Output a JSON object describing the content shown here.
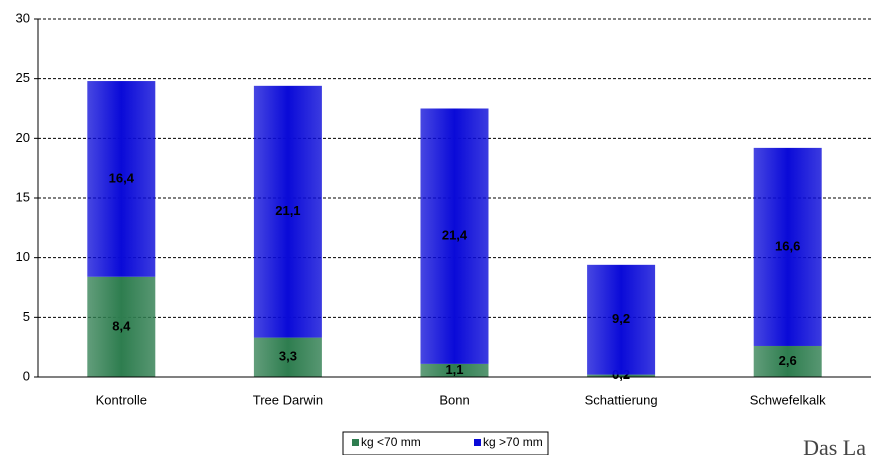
{
  "chart_data": {
    "type": "stacked-bar",
    "categories": [
      "Kontrolle",
      "Tree Darwin",
      "Bonn",
      "Schattierung",
      "Schwefelkalk"
    ],
    "series": [
      {
        "name": "kg <70 mm",
        "color": "#2e7d4f",
        "values": [
          8.4,
          3.3,
          1.1,
          0.2,
          2.6
        ],
        "value_labels": [
          "8,4",
          "3,3",
          "1,1",
          "0,2",
          "2,6"
        ]
      },
      {
        "name": "kg >70 mm",
        "color": "#0a0ad8",
        "values": [
          16.4,
          21.1,
          21.4,
          9.2,
          16.6
        ],
        "value_labels": [
          "16,4",
          "21,1",
          "21,4",
          "9,2",
          "16,6"
        ]
      }
    ],
    "ylim": [
      0,
      30
    ],
    "yticks": [
      0,
      5,
      10,
      15,
      20,
      25,
      30
    ],
    "grid": true,
    "logo_text": "Das La"
  }
}
